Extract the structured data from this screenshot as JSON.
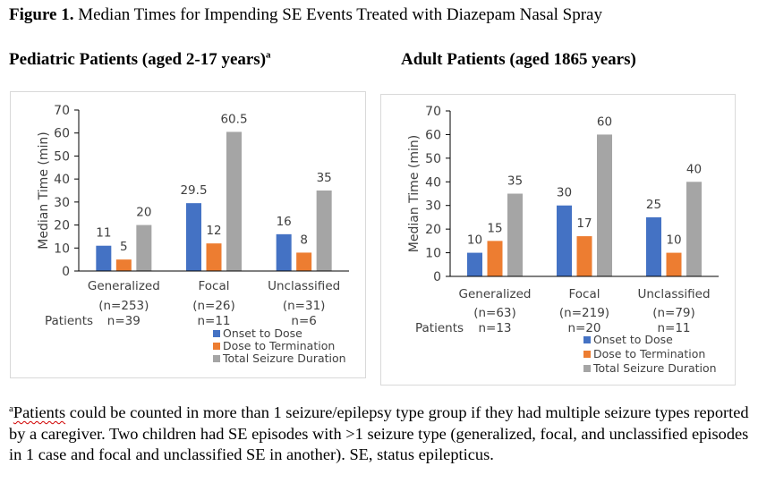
{
  "figure": {
    "label": "Figure 1.",
    "title": " Median Times for Impending SE Events Treated with Diazepam Nasal Spray"
  },
  "panels": {
    "left": {
      "title": "Pediatric Patients (aged 2-17 years)",
      "title_sup": "a"
    },
    "right": {
      "title": "Adult Patients (aged 1865 years)"
    }
  },
  "footnote": {
    "sup": "a",
    "first_word": "Patients",
    "text": " could be counted in more than 1 seizure/epilepsy type group if they had multiple seizure types reported by a caregiver. Two children had SE episodes with >1 seizure type (generalized, focal, and unclassified episodes in 1 case and focal and unclassified SE in another). SE, status epilepticus."
  },
  "chart_data": [
    {
      "type": "bar",
      "title": "Pediatric Patients (aged 2-17 years)",
      "xlabel": "",
      "ylabel": "Median Time (min)",
      "ylim": [
        0,
        70
      ],
      "yticks": [
        0,
        10,
        20,
        30,
        40,
        50,
        60,
        70
      ],
      "grid": false,
      "categories": [
        "Generalized",
        "Focal",
        "Unclassified"
      ],
      "category_n": [
        "(n=253)",
        "(n=26)",
        "(n=31)"
      ],
      "patients_label": "Patients",
      "patients_n": [
        "n=39",
        "n=11",
        "n=6"
      ],
      "legend_position": "bottom-right",
      "series": [
        {
          "name": "Onset to Dose",
          "color": "#4472c4",
          "values": [
            11,
            29.5,
            16
          ],
          "labels": [
            "11",
            "29.5",
            "16"
          ]
        },
        {
          "name": "Dose to Termination",
          "color": "#ed7d31",
          "values": [
            5,
            12,
            8
          ],
          "labels": [
            "5",
            "12",
            "8"
          ]
        },
        {
          "name": "Total Seizure Duration",
          "color": "#a5a5a5",
          "values": [
            20,
            60.5,
            35
          ],
          "labels": [
            "20",
            "60.5",
            "35"
          ]
        }
      ]
    },
    {
      "type": "bar",
      "title": "Adult Patients (aged 1865 years)",
      "xlabel": "",
      "ylabel": "Median Time (min)",
      "ylim": [
        0,
        70
      ],
      "yticks": [
        0,
        10,
        20,
        30,
        40,
        50,
        60,
        70
      ],
      "grid": false,
      "categories": [
        "Generalized",
        "Focal",
        "Unclassified"
      ],
      "category_n": [
        "(n=63)",
        "(n=219)",
        "(n=79)"
      ],
      "patients_label": "Patients",
      "patients_n": [
        "n=13",
        "n=20",
        "n=11"
      ],
      "legend_position": "bottom-right",
      "series": [
        {
          "name": "Onset to Dose",
          "color": "#4472c4",
          "values": [
            10,
            30,
            25
          ],
          "labels": [
            "10",
            "30",
            "25"
          ]
        },
        {
          "name": "Dose to Termination",
          "color": "#ed7d31",
          "values": [
            15,
            17,
            10
          ],
          "labels": [
            "15",
            "17",
            "10"
          ]
        },
        {
          "name": "Total Seizure Duration",
          "color": "#a5a5a5",
          "values": [
            35,
            60,
            40
          ],
          "labels": [
            "35",
            "60",
            "40"
          ]
        }
      ]
    }
  ]
}
